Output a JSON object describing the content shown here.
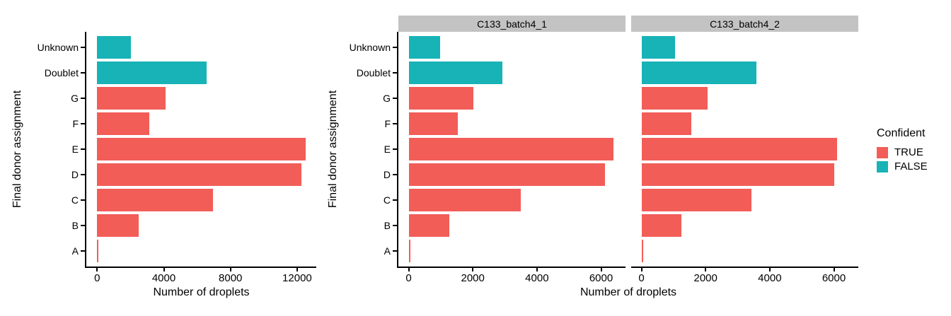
{
  "colors": {
    "confident_true": "#F25D58",
    "confident_false": "#17B3B6",
    "strip_bg": "#C3C3C3",
    "axis": "#000000"
  },
  "legend": {
    "title": "Confident",
    "entries": [
      {
        "label": "TRUE",
        "color_key": "confident_true"
      },
      {
        "label": "FALSE",
        "color_key": "confident_false"
      }
    ]
  },
  "chart_data": [
    {
      "type": "bar",
      "orientation": "horizontal",
      "title": "",
      "xlabel": "Number of droplets",
      "ylabel": "Final donor assignment",
      "categories": [
        "Unknown",
        "Doublet",
        "G",
        "F",
        "E",
        "D",
        "C",
        "B",
        "A"
      ],
      "confident": [
        false,
        false,
        true,
        true,
        true,
        true,
        true,
        true,
        true
      ],
      "values": [
        2040,
        6550,
        4090,
        3110,
        12510,
        12260,
        6940,
        2510,
        90
      ],
      "x_ticks": [
        0,
        4000,
        8000,
        12000
      ],
      "xlim": [
        -650,
        13150
      ],
      "grid": false
    },
    {
      "type": "bar",
      "orientation": "horizontal",
      "title": "",
      "xlabel": "Number of droplets",
      "ylabel": "Final donor assignment",
      "categories": [
        "Unknown",
        "Doublet",
        "G",
        "F",
        "E",
        "D",
        "C",
        "B",
        "A"
      ],
      "confident": [
        false,
        false,
        true,
        true,
        true,
        true,
        true,
        true,
        true
      ],
      "facets": [
        {
          "label": "C133_batch4_1",
          "values": [
            990,
            2920,
            2020,
            1540,
            6380,
            6120,
            3490,
            1270,
            50
          ]
        },
        {
          "label": "C133_batch4_2",
          "values": [
            1050,
            3580,
            2060,
            1560,
            6100,
            6020,
            3420,
            1250,
            50
          ]
        }
      ],
      "x_ticks": [
        0,
        2000,
        4000,
        6000
      ],
      "xlim": [
        -320,
        6760
      ],
      "grid": false
    }
  ]
}
